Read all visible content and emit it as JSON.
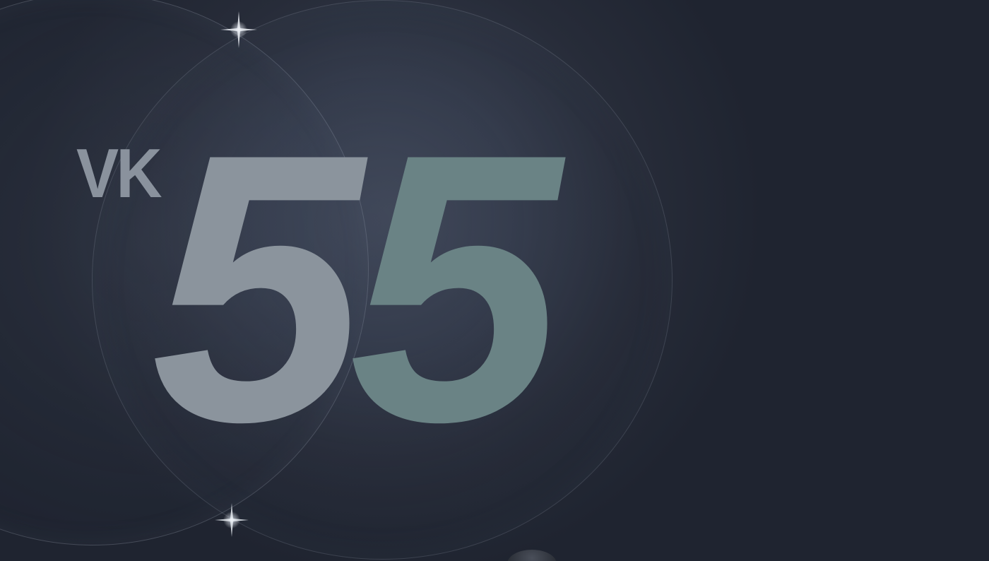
{
  "hero": {
    "prefix": "VK",
    "digit_1": "5",
    "digit_2": "5"
  },
  "colors": {
    "background": "#1f2430",
    "prefix_text": "#8a929d",
    "digit_1": "#8b949d",
    "digit_2": "#6a8385"
  },
  "decor": {
    "lenses": [
      "left-lens",
      "right-lens"
    ],
    "sparkle_icon": "four-point-star"
  }
}
